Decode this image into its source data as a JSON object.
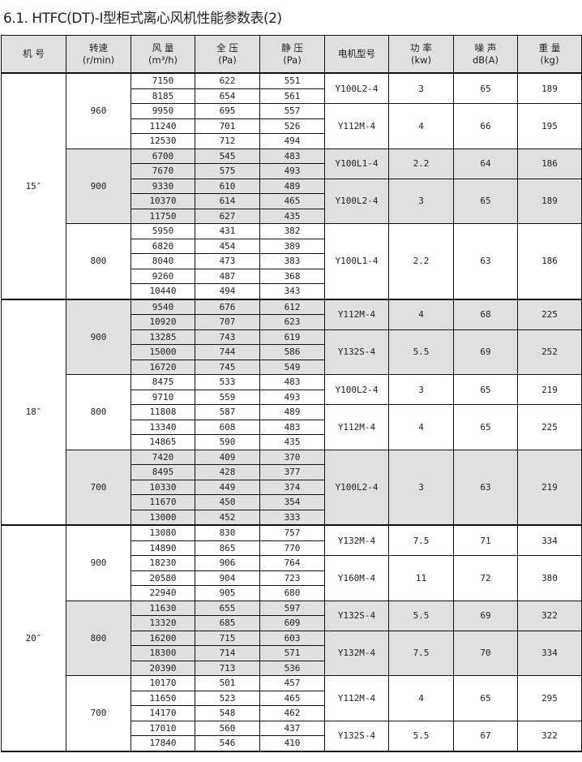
{
  "title": "6.1. HTFC(DT)-I型柜式离心风机性能参数表(2)",
  "headers": [
    {
      "line1": "机 号",
      "line2": ""
    },
    {
      "line1": "转速",
      "line2": "(r/min)"
    },
    {
      "line1": "风 量",
      "line2": "(m³/h)"
    },
    {
      "line1": "全 压",
      "line2": "(Pa)"
    },
    {
      "line1": "静 压",
      "line2": "(Pa)"
    },
    {
      "line1": "电机型号",
      "line2": ""
    },
    {
      "line1": "功 率",
      "line2": "(kw)"
    },
    {
      "line1": "噪 声",
      "line2": "dB(A)"
    },
    {
      "line1": "重 量",
      "line2": "(kg)"
    }
  ],
  "shade_color": "#e0e0e0",
  "groups": [
    {
      "size": "15″",
      "speeds": [
        {
          "rpm": "960",
          "shaded": false,
          "motors": [
            {
              "model": "Y100L2-4",
              "power": "3",
              "noise": "65",
              "weight": "189",
              "rows": [
                [
                  "7150",
                  "622",
                  "551"
                ],
                [
                  "8185",
                  "654",
                  "561"
                ]
              ]
            },
            {
              "model": "Y112M-4",
              "power": "4",
              "noise": "66",
              "weight": "195",
              "rows": [
                [
                  "9950",
                  "695",
                  "557"
                ],
                [
                  "11240",
                  "701",
                  "526"
                ],
                [
                  "12530",
                  "712",
                  "494"
                ]
              ]
            }
          ]
        },
        {
          "rpm": "900",
          "shaded": true,
          "motors": [
            {
              "model": "Y100L1-4",
              "power": "2.2",
              "noise": "64",
              "weight": "186",
              "rows": [
                [
                  "6700",
                  "545",
                  "483"
                ],
                [
                  "7670",
                  "575",
                  "493"
                ]
              ]
            },
            {
              "model": "Y100L2-4",
              "power": "3",
              "noise": "65",
              "weight": "189",
              "rows": [
                [
                  "9330",
                  "610",
                  "489"
                ],
                [
                  "10370",
                  "614",
                  "465"
                ],
                [
                  "11750",
                  "627",
                  "435"
                ]
              ]
            }
          ]
        },
        {
          "rpm": "800",
          "shaded": false,
          "motors": [
            {
              "model": "Y100L1-4",
              "power": "2.2",
              "noise": "63",
              "weight": "186",
              "rows": [
                [
                  "5950",
                  "431",
                  "382"
                ],
                [
                  "6820",
                  "454",
                  "389"
                ],
                [
                  "8040",
                  "473",
                  "383"
                ],
                [
                  "9260",
                  "487",
                  "368"
                ],
                [
                  "10440",
                  "494",
                  "343"
                ]
              ]
            }
          ]
        }
      ]
    },
    {
      "size": "18″",
      "speeds": [
        {
          "rpm": "900",
          "shaded": true,
          "motors": [
            {
              "model": "Y112M-4",
              "power": "4",
              "noise": "68",
              "weight": "225",
              "rows": [
                [
                  "9540",
                  "676",
                  "612"
                ],
                [
                  "10920",
                  "707",
                  "623"
                ]
              ]
            },
            {
              "model": "Y132S-4",
              "power": "5.5",
              "noise": "69",
              "weight": "252",
              "rows": [
                [
                  "13285",
                  "743",
                  "619"
                ],
                [
                  "15000",
                  "744",
                  "586"
                ],
                [
                  "16720",
                  "745",
                  "549"
                ]
              ]
            }
          ]
        },
        {
          "rpm": "800",
          "shaded": false,
          "motors": [
            {
              "model": "Y100L2-4",
              "power": "3",
              "noise": "65",
              "weight": "219",
              "rows": [
                [
                  "8475",
                  "533",
                  "483"
                ],
                [
                  "9710",
                  "559",
                  "493"
                ]
              ]
            },
            {
              "model": "Y112M-4",
              "power": "4",
              "noise": "65",
              "weight": "225",
              "rows": [
                [
                  "11808",
                  "587",
                  "489"
                ],
                [
                  "13340",
                  "608",
                  "483"
                ],
                [
                  "14865",
                  "590",
                  "435"
                ]
              ]
            }
          ]
        },
        {
          "rpm": "700",
          "shaded": true,
          "motors": [
            {
              "model": "Y100L2-4",
              "power": "3",
              "noise": "63",
              "weight": "219",
              "rows": [
                [
                  "7420",
                  "409",
                  "370"
                ],
                [
                  "8495",
                  "428",
                  "377"
                ],
                [
                  "10330",
                  "449",
                  "374"
                ],
                [
                  "11670",
                  "450",
                  "354"
                ],
                [
                  "13000",
                  "452",
                  "333"
                ]
              ]
            }
          ]
        }
      ]
    },
    {
      "size": "20″",
      "speeds": [
        {
          "rpm": "900",
          "shaded": false,
          "motors": [
            {
              "model": "Y132M-4",
              "power": "7.5",
              "noise": "71",
              "weight": "334",
              "rows": [
                [
                  "13080",
                  "830",
                  "757"
                ],
                [
                  "14890",
                  "865",
                  "770"
                ]
              ]
            },
            {
              "model": "Y160M-4",
              "power": "11",
              "noise": "72",
              "weight": "380",
              "rows": [
                [
                  "18230",
                  "906",
                  "764"
                ],
                [
                  "20580",
                  "904",
                  "723"
                ],
                [
                  "22940",
                  "905",
                  "680"
                ]
              ]
            }
          ]
        },
        {
          "rpm": "800",
          "shaded": true,
          "motors": [
            {
              "model": "Y132S-4",
              "power": "5.5",
              "noise": "69",
              "weight": "322",
              "rows": [
                [
                  "11630",
                  "655",
                  "597"
                ],
                [
                  "13320",
                  "685",
                  "609"
                ]
              ]
            },
            {
              "model": "Y132M-4",
              "power": "7.5",
              "noise": "70",
              "weight": "334",
              "rows": [
                [
                  "16200",
                  "715",
                  "603"
                ],
                [
                  "18300",
                  "714",
                  "571"
                ],
                [
                  "20390",
                  "713",
                  "536"
                ]
              ]
            }
          ]
        },
        {
          "rpm": "700",
          "shaded": false,
          "motors": [
            {
              "model": "Y112M-4",
              "power": "4",
              "noise": "65",
              "weight": "295",
              "rows": [
                [
                  "10170",
                  "501",
                  "457"
                ],
                [
                  "11650",
                  "523",
                  "465"
                ],
                [
                  "14170",
                  "548",
                  "462"
                ]
              ]
            },
            {
              "model": "Y132S-4",
              "power": "5.5",
              "noise": "67",
              "weight": "322",
              "rows": [
                [
                  "17010",
                  "560",
                  "437"
                ],
                [
                  "17840",
                  "546",
                  "410"
                ]
              ]
            }
          ]
        }
      ]
    }
  ]
}
